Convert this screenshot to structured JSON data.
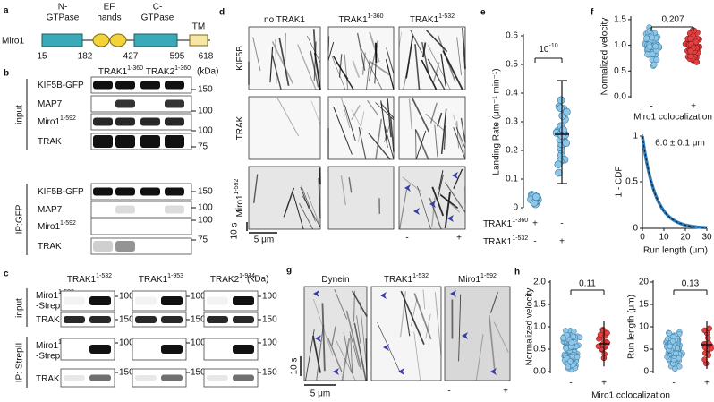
{
  "a": {
    "label": "a",
    "protein": "Miro1",
    "domains": [
      "N-",
      "GTPase",
      "EF",
      "hands",
      "C-",
      "GTPase",
      "TM"
    ],
    "residues": [
      "15",
      "182",
      "427",
      "595",
      "618"
    ]
  },
  "b": {
    "label": "b",
    "columns": [
      {
        "name": "TRAK1",
        "sup": "1-360"
      },
      {
        "name": "TRAK2",
        "sup": "1-360"
      }
    ],
    "unit": "(kDa)",
    "input": {
      "name": "input",
      "rows": [
        {
          "name": "KIF5B-GFP"
        },
        {
          "name": "MAP7"
        },
        {
          "name": "Miro1",
          "sup": "1-592"
        },
        {
          "name": "TRAK"
        }
      ],
      "markers": [
        "150",
        "100",
        "100",
        "75"
      ]
    },
    "ip": {
      "name": "IP:GFP",
      "rows": [
        {
          "name": "KIF5B-GFP"
        },
        {
          "name": "MAP7"
        },
        {
          "name": "Miro1",
          "sup": "1-592"
        },
        {
          "name": "TRAK"
        }
      ],
      "markers": [
        "150",
        "100",
        "100",
        "75"
      ]
    }
  },
  "c": {
    "label": "c",
    "columns": [
      {
        "name": "TRAK1",
        "sup": "1-532"
      },
      {
        "name": "TRAK1",
        "sup": "1-953"
      },
      {
        "name": "TRAK2",
        "sup": "1-914"
      }
    ],
    "unit": "(kDa)",
    "input": {
      "name": "input",
      "rows": [
        {
          "name": "Miro1",
          "sup": "1-592",
          "line2": "-StrepII"
        },
        {
          "name": "TRAK"
        }
      ],
      "markers": [
        [
          "100",
          "150"
        ],
        [
          "100",
          "150"
        ],
        [
          "100",
          "150"
        ]
      ]
    },
    "ip": {
      "name": "IP: StrepII",
      "rows": [
        {
          "name": "Miro1",
          "sup": "1-592",
          "line2": "-StrepII"
        },
        {
          "name": "TRAK"
        }
      ],
      "markers": [
        [
          "100",
          "150"
        ],
        [
          "100",
          "150"
        ],
        [
          "100",
          "150"
        ]
      ]
    }
  },
  "d": {
    "label": "d",
    "columns": [
      {
        "name": "no TRAK1"
      },
      {
        "name": "TRAK1",
        "sup": "1-360"
      },
      {
        "name": "TRAK1",
        "sup": "1-532"
      }
    ],
    "rows": [
      {
        "name": "KIF5B"
      },
      {
        "name": "TRAK"
      },
      {
        "name": "Miro1",
        "sup": "1-592"
      }
    ],
    "time_scale": "10 s",
    "length_scale": "5 μm",
    "conditions": [
      "-",
      "+"
    ]
  },
  "e": {
    "label": "e",
    "y_label": "Landing Rate (μm⁻¹ min⁻¹)",
    "yticks": [
      "0",
      "0.1",
      "0.2",
      "0.3",
      "0.4",
      "0.5",
      "0.6"
    ],
    "p_value": {
      "base": "10",
      "exponent": "-10"
    },
    "conditions": [
      {
        "name": "TRAK1",
        "sup": "1-360",
        "signs": [
          "+",
          "-"
        ]
      },
      {
        "name": "TRAK1",
        "sup": "1-532",
        "signs": [
          "-",
          "+"
        ]
      }
    ]
  },
  "f": {
    "label": "f",
    "velocity": {
      "y_label": "Normalized velocity",
      "yticks": [
        "0.0",
        "0.5",
        "1.0",
        "1.5"
      ],
      "p_value": "0.207",
      "categories": [
        "-",
        "+"
      ],
      "x_label": "Miro1 colocalization"
    },
    "cdf": {
      "y_label": "1 - CDF",
      "yticks": [
        "0",
        "0.5",
        "1"
      ],
      "xticks": [
        "0",
        "10",
        "20",
        "30"
      ],
      "x_label": "Run length (μm)",
      "annotation": "6.0 ± 0.1 μm"
    }
  },
  "g": {
    "label": "g",
    "columns": [
      {
        "name": "Dynein"
      },
      {
        "name": "TRAK1",
        "sup": "1-532"
      },
      {
        "name": "Miro1",
        "sup": "1-592"
      }
    ],
    "time_scale": "10 s",
    "length_scale": "5 μm",
    "conditions": [
      "-",
      "+"
    ]
  },
  "h": {
    "label": "h",
    "velocity": {
      "y_label": "Normalized velocity",
      "yticks": [
        "0.0",
        "0.5",
        "1.0",
        "1.5",
        "2.0"
      ],
      "p_value": "0.11",
      "categories": [
        "-",
        "+"
      ]
    },
    "run_length": {
      "y_label": "Run length (μm)",
      "yticks": [
        "0",
        "5",
        "10",
        "15",
        "20"
      ],
      "p_value": "0.13",
      "categories": [
        "-",
        "+"
      ]
    },
    "x_label": "Miro1 colocalization"
  }
}
